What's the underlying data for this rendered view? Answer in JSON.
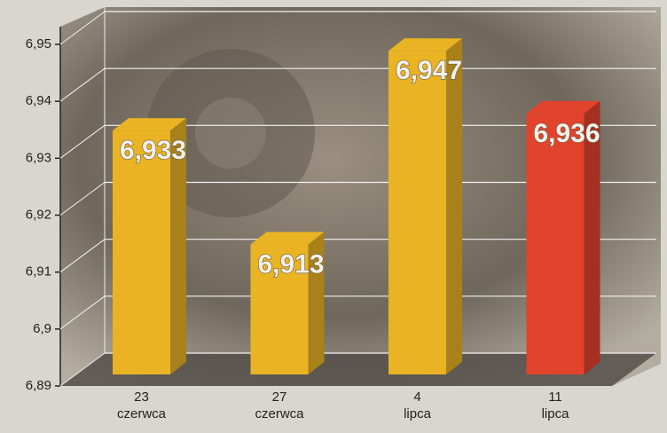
{
  "chart_data": {
    "type": "bar",
    "categories": [
      "23\nczerwca",
      "27\nczerwca",
      "4\nlipca",
      "11\nlipca"
    ],
    "values": [
      6.933,
      6.913,
      6.947,
      6.936
    ],
    "value_labels": [
      "6,933",
      "6,913",
      "6,947",
      "6,936"
    ],
    "colors": [
      "#e9b324",
      "#e9b324",
      "#e9b324",
      "#e2432c"
    ],
    "ylim": [
      6.89,
      6.95
    ],
    "yticks": [
      {
        "value": 6.89,
        "label": "6,89"
      },
      {
        "value": 6.9,
        "label": "6,9"
      },
      {
        "value": 6.91,
        "label": "6,91"
      },
      {
        "value": 6.92,
        "label": "6,92"
      },
      {
        "value": 6.93,
        "label": "6,93"
      },
      {
        "value": 6.94,
        "label": "6,94"
      },
      {
        "value": 6.95,
        "label": "6,95"
      }
    ],
    "grid": true
  }
}
